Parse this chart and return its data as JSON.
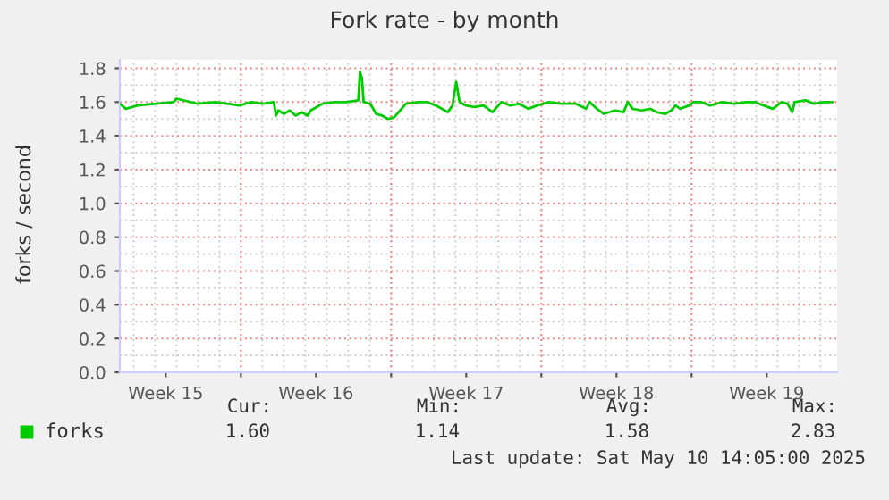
{
  "chart_data": {
    "type": "line",
    "title": "Fork rate - by month",
    "ylabel": "forks / second",
    "x": [
      "2025-04-08T08:38",
      "2025-04-08T15:21",
      "2025-04-09T04:33",
      "2025-04-10T00:43",
      "2025-04-10T20:38",
      "2025-04-10T23:59",
      "2025-04-11T23:16",
      "2025-04-12T19:11",
      "2025-04-13T08:38",
      "2025-04-13T22:04",
      "2025-04-14T11:16",
      "2025-04-15T00:43",
      "2025-04-15T12:43",
      "2025-04-15T15:21",
      "2025-04-15T17:59",
      "2025-04-15T23:59",
      "2025-04-16T06:43",
      "2025-04-16T13:11",
      "2025-04-16T19:55",
      "2025-04-17T02:38",
      "2025-04-17T05:59",
      "2025-04-17T19:11",
      "2025-04-18T08:38",
      "2025-04-18T22:04",
      "2025-04-19T11:16",
      "2025-04-19T13:11",
      "2025-04-19T15:21",
      "2025-04-19T17:16",
      "2025-04-20T00:43",
      "2025-04-20T07:11",
      "2025-04-20T13:55",
      "2025-04-20T20:38",
      "2025-04-21T03:21",
      "2025-04-21T10:04",
      "2025-04-21T16:33",
      "2025-04-22T05:59",
      "2025-04-22T16:04",
      "2025-04-23T01:55",
      "2025-04-23T15:21",
      "2025-04-23T20:38",
      "2025-04-24T00:43",
      "2025-04-24T04:33",
      "2025-04-24T11:16",
      "2025-04-24T21:21",
      "2025-04-25T07:11",
      "2025-04-25T17:16",
      "2025-04-26T03:21",
      "2025-04-26T13:11",
      "2025-04-26T23:16",
      "2025-04-27T09:21",
      "2025-04-27T19:11",
      "2025-04-28T08:38",
      "2025-04-28T22:04",
      "2025-04-29T14:38",
      "2025-04-30T01:55",
      "2025-04-30T05:59",
      "2025-04-30T13:55",
      "2025-04-30T22:04",
      "2025-05-01T10:04",
      "2025-05-01T19:55",
      "2025-05-02T00:43",
      "2025-05-02T05:59",
      "2025-05-02T16:04",
      "2025-05-03T01:55",
      "2025-05-03T08:38",
      "2025-05-03T18:43",
      "2025-05-04T01:11",
      "2025-05-04T05:59",
      "2025-05-04T11:16",
      "2025-05-04T21:21",
      "2025-05-05T01:55",
      "2025-05-05T10:33",
      "2025-05-05T20:38",
      "2025-05-06T10:04",
      "2025-05-06T23:16",
      "2025-05-07T12:43",
      "2025-05-07T22:33",
      "2025-05-08T08:38",
      "2025-05-08T18:43",
      "2025-05-09T04:33",
      "2025-05-09T11:16",
      "2025-05-09T16:33",
      "2025-05-09T19:11",
      "2025-05-10T07:11",
      "2025-05-10T17:16",
      "2025-05-11T03:21",
      "2025-05-11T13:11"
    ],
    "series": [
      {
        "name": "forks",
        "color": "#00cc00",
        "values": [
          1.59,
          1.56,
          1.58,
          1.59,
          1.6,
          1.62,
          1.59,
          1.6,
          1.59,
          1.58,
          1.6,
          1.59,
          1.6,
          1.52,
          1.55,
          1.53,
          1.55,
          1.52,
          1.54,
          1.52,
          1.55,
          1.59,
          1.6,
          1.6,
          1.61,
          1.78,
          1.74,
          1.6,
          1.59,
          1.53,
          1.52,
          1.5,
          1.51,
          1.55,
          1.59,
          1.6,
          1.6,
          1.58,
          1.54,
          1.58,
          1.72,
          1.6,
          1.58,
          1.57,
          1.58,
          1.54,
          1.6,
          1.58,
          1.59,
          1.56,
          1.58,
          1.6,
          1.59,
          1.59,
          1.56,
          1.6,
          1.56,
          1.53,
          1.55,
          1.54,
          1.6,
          1.56,
          1.55,
          1.56,
          1.54,
          1.53,
          1.55,
          1.58,
          1.56,
          1.58,
          1.6,
          1.6,
          1.58,
          1.6,
          1.59,
          1.6,
          1.6,
          1.58,
          1.56,
          1.6,
          1.59,
          1.54,
          1.6,
          1.61,
          1.59,
          1.6,
          1.6
        ]
      }
    ],
    "xlim": [
      "2025-04-08T08:38",
      "2025-05-11T18:43"
    ],
    "xticks": [
      {
        "value": "2025-04-10T12:00",
        "label": "Week 15"
      },
      {
        "value": "2025-04-14",
        "label": null
      },
      {
        "value": "2025-04-17T12:00",
        "label": "Week 16"
      },
      {
        "value": "2025-04-21",
        "label": null
      },
      {
        "value": "2025-04-24T12:00",
        "label": "Week 17"
      },
      {
        "value": "2025-04-28",
        "label": null
      },
      {
        "value": "2025-05-01T12:00",
        "label": "Week 18"
      },
      {
        "value": "2025-05-05",
        "label": null
      },
      {
        "value": "2025-05-08T12:00",
        "label": "Week 19"
      }
    ],
    "ylim": [
      0,
      1.85
    ],
    "yticks": [
      {
        "value": 0,
        "label": "0.0"
      },
      {
        "value": 0.2,
        "label": "0.2"
      },
      {
        "value": 0.4,
        "label": "0.4"
      },
      {
        "value": 0.6,
        "label": "0.6"
      },
      {
        "value": 0.8,
        "label": "0.8"
      },
      {
        "value": 1.0,
        "label": "1.0"
      },
      {
        "value": 1.2,
        "label": "1.2"
      },
      {
        "value": 1.4,
        "label": "1.4"
      },
      {
        "value": 1.6,
        "label": "1.6"
      },
      {
        "value": 1.8,
        "label": "1.8"
      }
    ],
    "grid": true,
    "legend": "bottom left",
    "marker": "none",
    "line_style": "solid",
    "annotations": [
      "Cur:",
      "Min:",
      "Avg:",
      "Max:",
      "1.60",
      "1.14",
      "1.58",
      "2.83",
      "Last update: Sat May 10 14:05:00 2025"
    ]
  }
}
